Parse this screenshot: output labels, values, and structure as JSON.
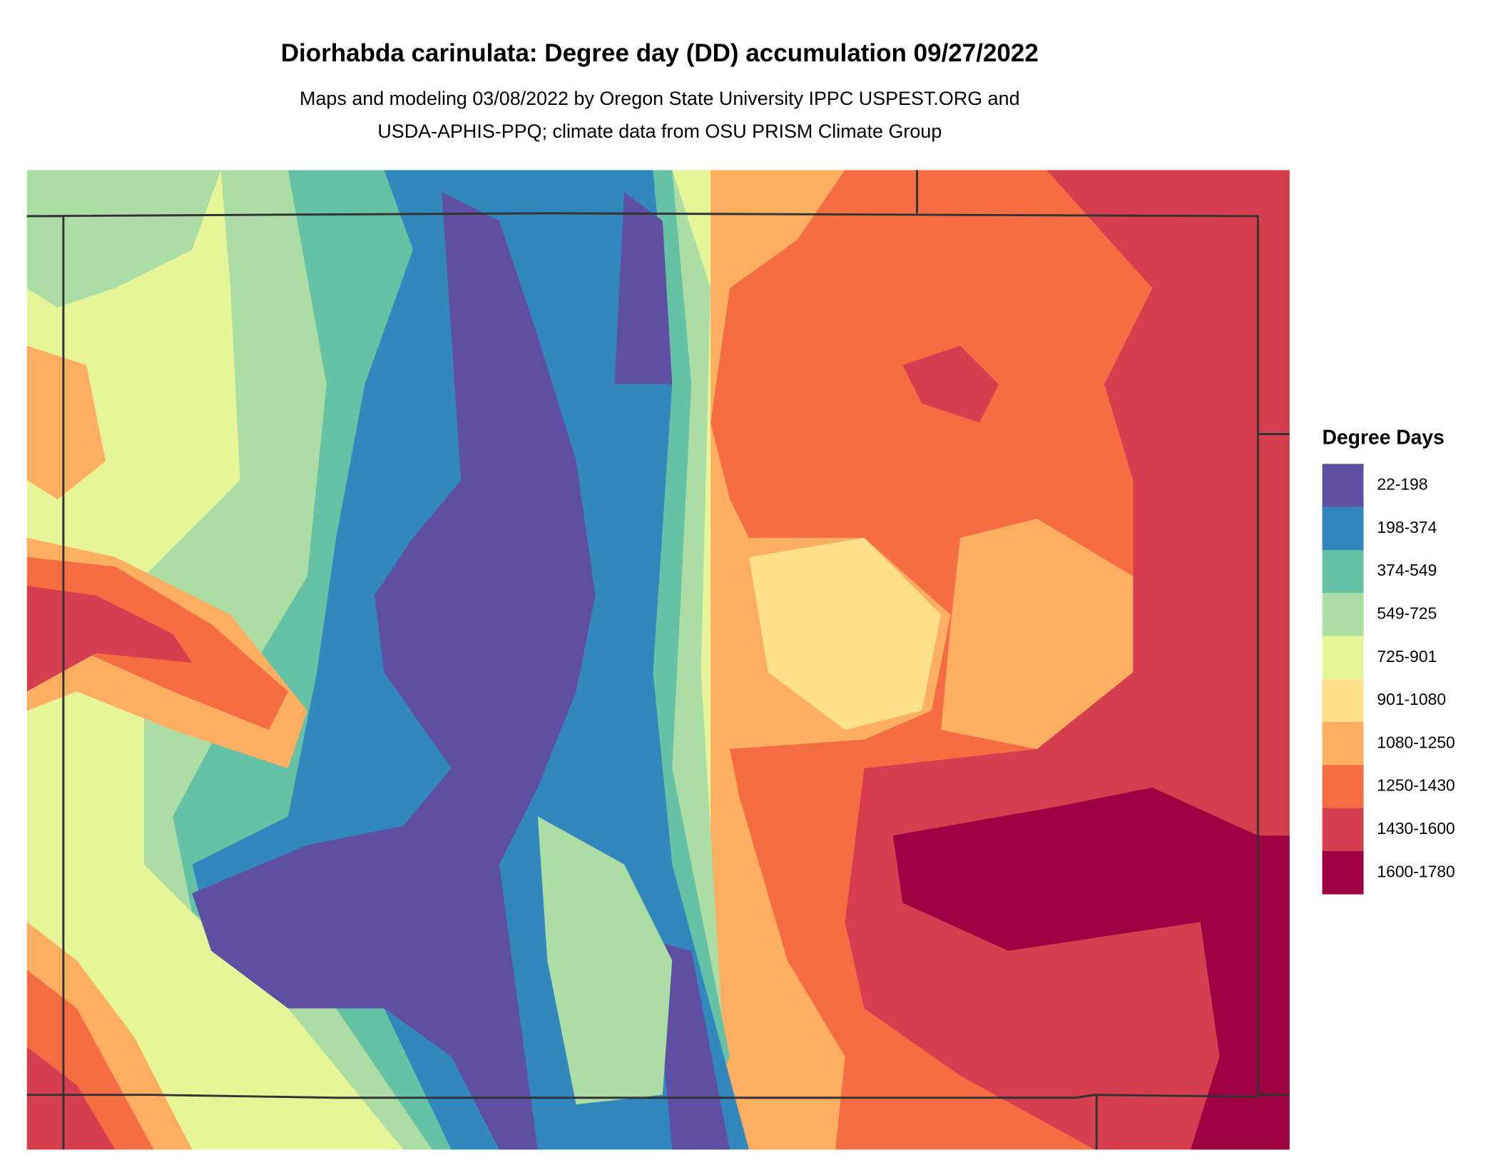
{
  "header": {
    "title": "Diorhabda carinulata: Degree day (DD) accumulation 09/27/2022",
    "subtitle": [
      "Maps and modeling 03/08/2022 by Oregon State University IPPC USPEST.ORG and",
      "USDA-APHIS-PPQ; climate data from OSU PRISM Climate Group"
    ]
  },
  "legend": {
    "title": "Degree Days",
    "items": [
      {
        "label": "22-198",
        "color": "#5e4fa2"
      },
      {
        "label": "198-374",
        "color": "#3288bd"
      },
      {
        "label": "374-549",
        "color": "#66c2a5"
      },
      {
        "label": "549-725",
        "color": "#abdda4"
      },
      {
        "label": "725-901",
        "color": "#e6f598"
      },
      {
        "label": "901-1080",
        "color": "#fee08b"
      },
      {
        "label": "1080-1250",
        "color": "#fdae61"
      },
      {
        "label": "1250-1430",
        "color": "#f46d43"
      },
      {
        "label": "1430-1600",
        "color": "#d53e4f"
      },
      {
        "label": "1600-1780",
        "color": "#9e0142"
      }
    ]
  }
}
